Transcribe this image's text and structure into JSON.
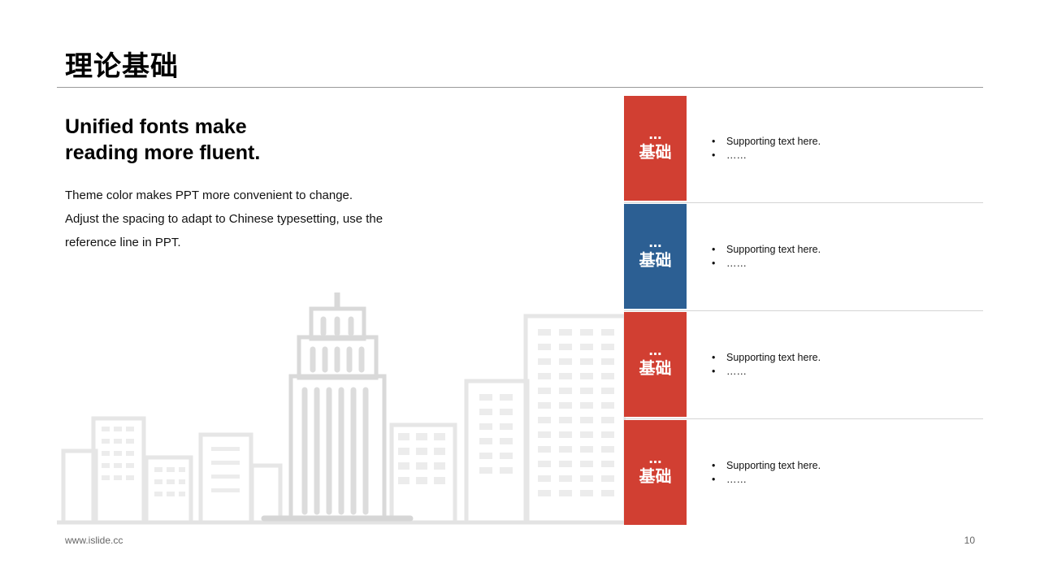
{
  "title": "理论基础",
  "headline": [
    "Unified fonts make",
    "reading more fluent."
  ],
  "body_lines": [
    "Theme color makes PPT more convenient to change.",
    "Adjust the spacing to adapt to Chinese typesetting, use the",
    "reference line in PPT."
  ],
  "items": [
    {
      "tile_dots": "…",
      "tile_label": "基础",
      "color": "#d13f32",
      "bullets": [
        "Supporting  text here.",
        "……"
      ]
    },
    {
      "tile_dots": "…",
      "tile_label": "基础",
      "color": "#2c5f93",
      "bullets": [
        "Supporting  text here.",
        "……"
      ]
    },
    {
      "tile_dots": "…",
      "tile_label": "基础",
      "color": "#d13f32",
      "bullets": [
        "Supporting  text here.",
        "……"
      ]
    },
    {
      "tile_dots": "…",
      "tile_label": "基础",
      "color": "#d13f32",
      "bullets": [
        "Supporting  text here.",
        "……"
      ]
    }
  ],
  "footer": {
    "url": "www.islide.cc",
    "page": "10"
  }
}
